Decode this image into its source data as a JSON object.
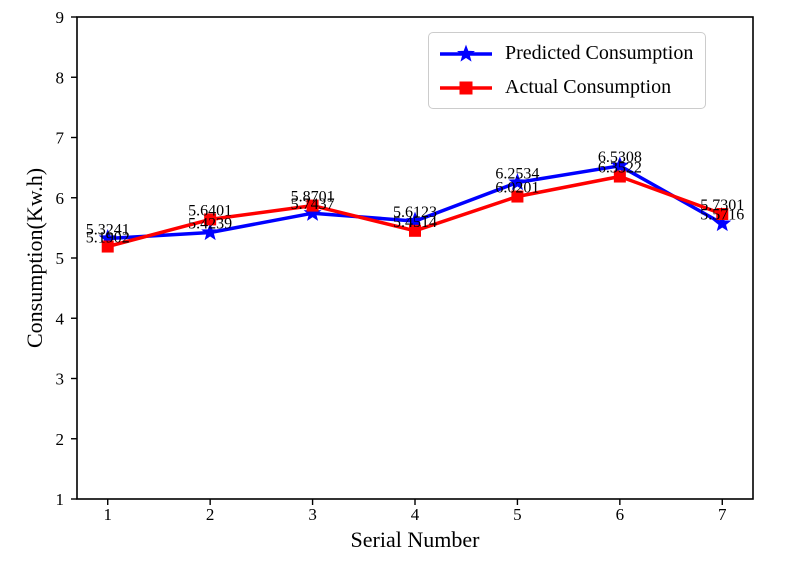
{
  "figure": {
    "background": "#ffffff",
    "text_color": "#000000",
    "axis_color": "#000000"
  },
  "chart_data": {
    "type": "line",
    "x": [
      1,
      2,
      3,
      4,
      5,
      6,
      7
    ],
    "series": [
      {
        "name": "Predicted Consumption",
        "color": "#0000ff",
        "marker": "star",
        "values": [
          5.3241,
          5.4239,
          5.7437,
          5.6123,
          6.2534,
          6.5308,
          5.5716
        ],
        "labels": [
          "5.3241",
          "5.4239",
          "5.7437",
          "5.6123",
          "6.2534",
          "6.5308",
          "5.5716"
        ]
      },
      {
        "name": "Actual Consumption",
        "color": "#ff0000",
        "marker": "square",
        "values": [
          5.1902,
          5.6401,
          5.8701,
          5.4514,
          6.0201,
          6.3522,
          5.7301
        ],
        "labels": [
          "5.1902",
          "5.6401",
          "5.8701",
          "5.4514",
          "6.0201",
          "6.3522",
          "5.7301"
        ]
      }
    ],
    "xlabel": "Serial Number",
    "ylabel": "Consumption(Kw.h)",
    "xlim": [
      0.7,
      7.3
    ],
    "ylim": [
      1,
      9
    ],
    "xticks": [
      "1",
      "2",
      "3",
      "4",
      "5",
      "6",
      "7"
    ],
    "yticks": [
      "1",
      "2",
      "3",
      "4",
      "5",
      "6",
      "7",
      "8",
      "9"
    ],
    "grid": false,
    "legend": {
      "position": "upper-right",
      "border_color": "#cccccc"
    }
  }
}
